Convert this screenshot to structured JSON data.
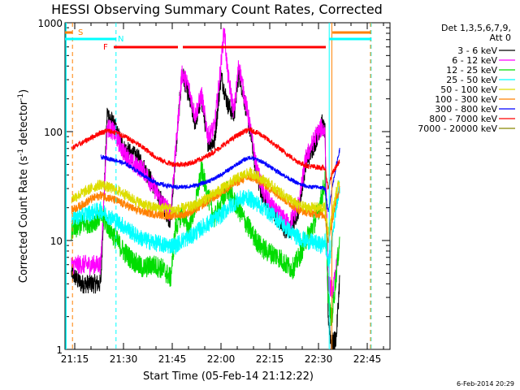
{
  "chart_data": {
    "type": "line",
    "title": "HESSI Observing Summary Count Rates, Corrected",
    "xlabel": "Start Time (05-Feb-14 21:12:22)",
    "ylabel_main": "Corrected Count Rate (s",
    "ylabel_sup1": "-1",
    "ylabel_mid": " detector",
    "ylabel_sup2": "-1",
    "ylabel_end": ")",
    "yscale": "log",
    "ylim": [
      1,
      1000
    ],
    "xlim_min": [
      1272,
      1372
    ],
    "x_ticks": [
      {
        "t": 1275,
        "label": "21:15"
      },
      {
        "t": 1290,
        "label": "21:30"
      },
      {
        "t": 1305,
        "label": "21:45"
      },
      {
        "t": 1320,
        "label": "22:00"
      },
      {
        "t": 1335,
        "label": "22:15"
      },
      {
        "t": 1350,
        "label": "22:30"
      },
      {
        "t": 1365,
        "label": "22:45"
      }
    ],
    "y_ticks": [
      {
        "v": 1,
        "label": "1"
      },
      {
        "v": 10,
        "label": "10"
      },
      {
        "v": 100,
        "label": "100"
      },
      {
        "v": 1000,
        "label": "1000"
      }
    ],
    "legend_header": [
      "Det 1,3,5,6,7,9,",
      "Att 0"
    ],
    "series": [
      {
        "name": "3 - 6 keV",
        "color": "#000000",
        "noise": 0.09,
        "points": [
          [
            1274,
            5
          ],
          [
            1277,
            4
          ],
          [
            1281,
            4
          ],
          [
            1283,
            4
          ],
          [
            1285,
            150
          ],
          [
            1287,
            115
          ],
          [
            1290,
            70
          ],
          [
            1295,
            55
          ],
          [
            1299,
            33
          ],
          [
            1302,
            22
          ],
          [
            1304.5,
            15
          ],
          [
            1306,
            60
          ],
          [
            1308,
            350
          ],
          [
            1310,
            220
          ],
          [
            1312,
            120
          ],
          [
            1314,
            200
          ],
          [
            1316,
            80
          ],
          [
            1318,
            80
          ],
          [
            1320,
            330
          ],
          [
            1322,
            180
          ],
          [
            1324,
            140
          ],
          [
            1325.5,
            350
          ],
          [
            1327,
            210
          ],
          [
            1329,
            100
          ],
          [
            1331,
            40
          ],
          [
            1333,
            24
          ],
          [
            1335,
            20
          ],
          [
            1337,
            17
          ],
          [
            1339,
            13
          ],
          [
            1341,
            12
          ],
          [
            1344,
            20
          ],
          [
            1346,
            50
          ],
          [
            1349,
            80
          ],
          [
            1351,
            120
          ],
          [
            1352,
            100
          ],
          [
            1353,
            2
          ],
          [
            1354,
            1.1
          ],
          [
            1355.5,
            1.3
          ],
          [
            1356.5,
            4.5
          ]
        ]
      },
      {
        "name": "6 - 12 keV",
        "color": "#ff00ff",
        "noise": 0.09,
        "points": [
          [
            1274,
            6
          ],
          [
            1277,
            6
          ],
          [
            1281,
            6
          ],
          [
            1283,
            6
          ],
          [
            1285,
            110
          ],
          [
            1287,
            100
          ],
          [
            1290,
            65
          ],
          [
            1293,
            50
          ],
          [
            1296,
            45
          ],
          [
            1299,
            32
          ],
          [
            1302,
            22
          ],
          [
            1304.5,
            18
          ],
          [
            1306,
            65
          ],
          [
            1308,
            350
          ],
          [
            1310,
            260
          ],
          [
            1312,
            140
          ],
          [
            1314,
            220
          ],
          [
            1316,
            90
          ],
          [
            1318,
            110
          ],
          [
            1320,
            420
          ],
          [
            1321,
            900
          ],
          [
            1322,
            350
          ],
          [
            1324,
            150
          ],
          [
            1325.5,
            420
          ],
          [
            1327,
            230
          ],
          [
            1329,
            110
          ],
          [
            1331,
            45
          ],
          [
            1333,
            28
          ],
          [
            1335,
            22
          ],
          [
            1337,
            18
          ],
          [
            1339,
            16
          ],
          [
            1341,
            14
          ],
          [
            1344,
            22
          ],
          [
            1346,
            55
          ],
          [
            1349,
            90
          ],
          [
            1351,
            110
          ],
          [
            1352,
            100
          ],
          [
            1353,
            4
          ],
          [
            1354.5,
            3.5
          ],
          [
            1356,
            7
          ]
        ]
      },
      {
        "name": "12 - 25 keV",
        "color": "#00dd00",
        "noise": 0.1,
        "points": [
          [
            1274,
            12
          ],
          [
            1277,
            14
          ],
          [
            1281,
            15
          ],
          [
            1283,
            17
          ],
          [
            1285,
            14
          ],
          [
            1287,
            11
          ],
          [
            1290,
            8
          ],
          [
            1293,
            6.5
          ],
          [
            1296,
            5.5
          ],
          [
            1299,
            6
          ],
          [
            1302,
            5.5
          ],
          [
            1304.5,
            4.5
          ],
          [
            1306,
            13
          ],
          [
            1308,
            18
          ],
          [
            1310,
            13
          ],
          [
            1312,
            20
          ],
          [
            1314,
            45
          ],
          [
            1316,
            25
          ],
          [
            1318,
            16
          ],
          [
            1320,
            22
          ],
          [
            1322,
            30
          ],
          [
            1324,
            23
          ],
          [
            1326,
            18
          ],
          [
            1328,
            14
          ],
          [
            1330,
            11
          ],
          [
            1332,
            9
          ],
          [
            1334,
            8
          ],
          [
            1336,
            7.5
          ],
          [
            1338,
            7
          ],
          [
            1340,
            6
          ],
          [
            1342,
            5.5
          ],
          [
            1344,
            7
          ],
          [
            1346,
            10
          ],
          [
            1349,
            15
          ],
          [
            1351,
            25
          ],
          [
            1352,
            35
          ],
          [
            1353,
            3
          ],
          [
            1354,
            1.8
          ],
          [
            1355.5,
            5
          ],
          [
            1356.5,
            10
          ]
        ]
      },
      {
        "name": "25 - 50 keV",
        "color": "#00ffff",
        "noise": 0.08,
        "points": [
          [
            1274,
            16
          ],
          [
            1277,
            17
          ],
          [
            1280,
            18
          ],
          [
            1283,
            19
          ],
          [
            1285,
            17
          ],
          [
            1288,
            15
          ],
          [
            1291,
            13
          ],
          [
            1294,
            11
          ],
          [
            1297,
            10
          ],
          [
            1300,
            9.5
          ],
          [
            1303,
            9
          ],
          [
            1306,
            9
          ],
          [
            1308,
            10
          ],
          [
            1311,
            11
          ],
          [
            1314,
            13
          ],
          [
            1317,
            15
          ],
          [
            1320,
            17
          ],
          [
            1323,
            21
          ],
          [
            1326,
            24
          ],
          [
            1328,
            25
          ],
          [
            1331,
            22
          ],
          [
            1334,
            19
          ],
          [
            1337,
            16
          ],
          [
            1340,
            13
          ],
          [
            1343,
            11
          ],
          [
            1346,
            10
          ],
          [
            1349,
            9.5
          ],
          [
            1351,
            9
          ],
          [
            1352,
            10
          ],
          [
            1353,
            6
          ],
          [
            1354,
            9
          ],
          [
            1355.5,
            22
          ],
          [
            1356.5,
            32
          ]
        ]
      },
      {
        "name": "50 - 100 keV",
        "color": "#dddd00",
        "noise": 0.05,
        "points": [
          [
            1274,
            24
          ],
          [
            1277,
            27
          ],
          [
            1280,
            30
          ],
          [
            1283,
            33
          ],
          [
            1285,
            31
          ],
          [
            1288,
            29
          ],
          [
            1291,
            26
          ],
          [
            1294,
            23
          ],
          [
            1297,
            21
          ],
          [
            1300,
            20
          ],
          [
            1303,
            20
          ],
          [
            1306,
            19
          ],
          [
            1309,
            20
          ],
          [
            1312,
            21
          ],
          [
            1315,
            24
          ],
          [
            1318,
            27
          ],
          [
            1321,
            31
          ],
          [
            1324,
            36
          ],
          [
            1327,
            40
          ],
          [
            1329,
            42
          ],
          [
            1332,
            38
          ],
          [
            1335,
            33
          ],
          [
            1338,
            28
          ],
          [
            1341,
            24
          ],
          [
            1344,
            21
          ],
          [
            1347,
            20
          ],
          [
            1350,
            20
          ],
          [
            1352,
            20
          ],
          [
            1353,
            12
          ],
          [
            1354,
            16
          ],
          [
            1355.5,
            28
          ],
          [
            1356.5,
            35
          ]
        ]
      },
      {
        "name": "100 - 300 keV",
        "color": "#ff8000",
        "noise": 0.04,
        "points": [
          [
            1274,
            19
          ],
          [
            1277,
            21
          ],
          [
            1280,
            24
          ],
          [
            1283,
            26
          ],
          [
            1285,
            25
          ],
          [
            1288,
            23
          ],
          [
            1291,
            21
          ],
          [
            1294,
            19
          ],
          [
            1297,
            18
          ],
          [
            1300,
            17.5
          ],
          [
            1303,
            17
          ],
          [
            1306,
            17
          ],
          [
            1309,
            17.5
          ],
          [
            1312,
            19
          ],
          [
            1315,
            22
          ],
          [
            1318,
            25
          ],
          [
            1321,
            29
          ],
          [
            1324,
            33
          ],
          [
            1327,
            37
          ],
          [
            1329,
            38
          ],
          [
            1332,
            35
          ],
          [
            1335,
            30
          ],
          [
            1338,
            26
          ],
          [
            1341,
            22
          ],
          [
            1344,
            19
          ],
          [
            1347,
            18
          ],
          [
            1350,
            17.5
          ],
          [
            1352,
            17
          ],
          [
            1353,
            10
          ],
          [
            1354,
            14
          ],
          [
            1355.5,
            24
          ],
          [
            1356.5,
            30
          ]
        ]
      },
      {
        "name": "300 - 800 keV",
        "color": "#0000ff",
        "noise": 0.02,
        "points": [
          [
            1283,
            58
          ],
          [
            1285,
            57
          ],
          [
            1288,
            54
          ],
          [
            1291,
            50
          ],
          [
            1294,
            44
          ],
          [
            1297,
            38
          ],
          [
            1300,
            34
          ],
          [
            1303,
            32
          ],
          [
            1306,
            31
          ],
          [
            1309,
            31
          ],
          [
            1312,
            32
          ],
          [
            1315,
            34
          ],
          [
            1318,
            37
          ],
          [
            1321,
            42
          ],
          [
            1324,
            48
          ],
          [
            1327,
            55
          ],
          [
            1329,
            58
          ],
          [
            1332,
            54
          ],
          [
            1335,
            48
          ],
          [
            1338,
            42
          ],
          [
            1341,
            37
          ],
          [
            1344,
            33
          ],
          [
            1347,
            31
          ],
          [
            1350,
            31
          ],
          [
            1352,
            30
          ],
          [
            1353,
            18
          ],
          [
            1354,
            28
          ],
          [
            1355.5,
            50
          ],
          [
            1356.5,
            68
          ]
        ]
      },
      {
        "name": "800 - 7000 keV",
        "color": "#ff0000",
        "noise": 0.025,
        "points": [
          [
            1274,
            70
          ],
          [
            1277,
            78
          ],
          [
            1280,
            88
          ],
          [
            1283,
            98
          ],
          [
            1285,
            102
          ],
          [
            1288,
            97
          ],
          [
            1291,
            88
          ],
          [
            1294,
            78
          ],
          [
            1297,
            68
          ],
          [
            1300,
            58
          ],
          [
            1303,
            52
          ],
          [
            1306,
            50
          ],
          [
            1309,
            50
          ],
          [
            1312,
            53
          ],
          [
            1315,
            58
          ],
          [
            1318,
            66
          ],
          [
            1321,
            76
          ],
          [
            1324,
            88
          ],
          [
            1327,
            100
          ],
          [
            1329,
            104
          ],
          [
            1332,
            95
          ],
          [
            1335,
            82
          ],
          [
            1338,
            70
          ],
          [
            1341,
            60
          ],
          [
            1344,
            52
          ],
          [
            1347,
            48
          ],
          [
            1350,
            47
          ],
          [
            1352,
            46
          ],
          [
            1353,
            30
          ],
          [
            1354,
            40
          ],
          [
            1355.5,
            48
          ],
          [
            1356.5,
            52
          ]
        ]
      },
      {
        "name": "7000 - 20000 keV",
        "color": "#888800",
        "noise": 0.0,
        "points": []
      }
    ],
    "flags": [
      {
        "label": "S",
        "color": "#ff8000"
      },
      {
        "label": "N",
        "color": "#00ffff"
      },
      {
        "label": "F",
        "color": "#ff0000"
      }
    ],
    "footer_date": "6-Feb-2014 20:29"
  }
}
